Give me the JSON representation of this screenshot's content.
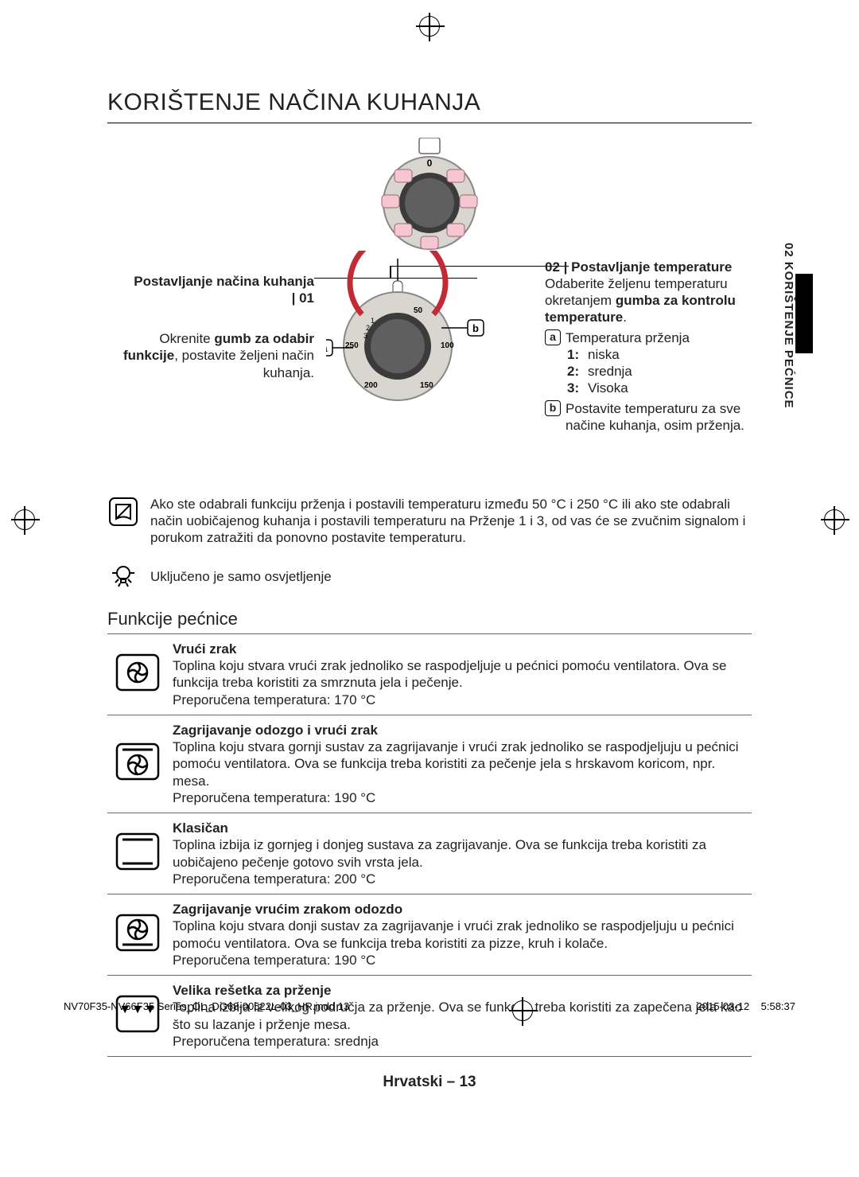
{
  "meta": {
    "footer_file": "NV70F35-NV66F35 Series_OL_DG68-00522L-03_HR.indd   13",
    "footer_time": "2015-03-12     5:58:37",
    "page_label": "Hrvatski – 13",
    "side_tab": "02  KORIŠTENJE PEĆNICE"
  },
  "heading": "KORIŠTENJE NAČINA KUHANJA",
  "top_dial": {
    "center_label": "0",
    "body_color": "#d9d6cf",
    "knob_color": "#3b3b3b",
    "ring_color": "#7a7772",
    "pink": "#f4c7d3"
  },
  "temp_dial": {
    "body_color": "#d9d6cf",
    "knob_color": "#3b3b3b",
    "scale_color": "#c22b35",
    "labels": [
      "50",
      "100",
      "150",
      "200",
      "250"
    ],
    "inner": [
      "1",
      "2",
      "3"
    ],
    "ab": {
      "a": "a",
      "b": "b"
    }
  },
  "step_left": {
    "title_line1": "Postavljanje načina kuhanja",
    "title_line2": "| 01",
    "body_pre": "Okrenite ",
    "body_bold": "gumb za odabir funkcije",
    "body_post": ", postavite željeni način kuhanja."
  },
  "step_right": {
    "title": "02 | Postavljanje temperature",
    "line1": "Odaberite željenu temperaturu okretanjem ",
    "line1_bold": "gumba za kontrolu temperature",
    "line1_post": ".",
    "a_label": "Temperatura prženja",
    "a_items": [
      {
        "num": "1:",
        "txt": "niska"
      },
      {
        "num": "2:",
        "txt": "srednja"
      },
      {
        "num": "3:",
        "txt": "Visoka"
      }
    ],
    "b_label": "Postavite temperaturu za sve načine kuhanja, osim prženja."
  },
  "note1": "Ako ste odabrali funkciju prženja i postavili temperaturu između 50 °C i 250 °C ili ako ste odabrali način uobičajenog kuhanja i postavili temperaturu na Prženje 1 i 3, od vas će se zvučnim signalom i porukom zatražiti da ponovno postavite temperaturu.",
  "note2": "Uključeno je samo osvjetljenje",
  "functions_heading": "Funkcije pećnice",
  "functions": [
    {
      "icon": "fan",
      "title": "Vrući zrak",
      "desc": "Toplina koju stvara vrući zrak jednoliko se raspodjeljuje u pećnici pomoću ventilatora. Ova se funkcija treba koristiti za smrznuta jela i pečenje.",
      "temp": "Preporučena temperatura: 170 °C"
    },
    {
      "icon": "top_fan",
      "title": "Zagrijavanje odozgo i vrući zrak",
      "desc": "Toplina koju stvara gornji sustav za zagrijavanje i vrući zrak jednoliko se raspodjeljuju u pećnici pomoću ventilatora. Ova se funkcija treba koristiti za pečenje jela s hrskavom koricom, npr. mesa.",
      "temp": "Preporučena temperatura: 190 °C"
    },
    {
      "icon": "classic",
      "title": "Klasičan",
      "desc": "Toplina izbija iz gornjeg i donjeg sustava za zagrijavanje. Ova se funkcija treba koristiti za uobičajeno pečenje gotovo svih vrsta jela.",
      "temp": "Preporučena temperatura: 200 °C"
    },
    {
      "icon": "bottom_fan",
      "title": "Zagrijavanje vrućim zrakom odozdo",
      "desc": "Toplina koju stvara donji sustav za zagrijavanje i vrući zrak jednoliko se raspodjeljuju u pećnici pomoću ventilatora. Ova se funkcija treba koristiti za pizze, kruh i kolače.",
      "temp": "Preporučena temperatura: 190 °C"
    },
    {
      "icon": "grill",
      "title": "Velika rešetka za prženje",
      "desc": "Toplina izbija iz velikog područja za prženje. Ova se funkcija treba koristiti za zapečena jela kao što su lazanje i prženje mesa.",
      "temp": "Preporučena temperatura: srednja"
    }
  ],
  "colors": {
    "text": "#222222",
    "rule": "#000000",
    "thin_rule": "#808080"
  }
}
